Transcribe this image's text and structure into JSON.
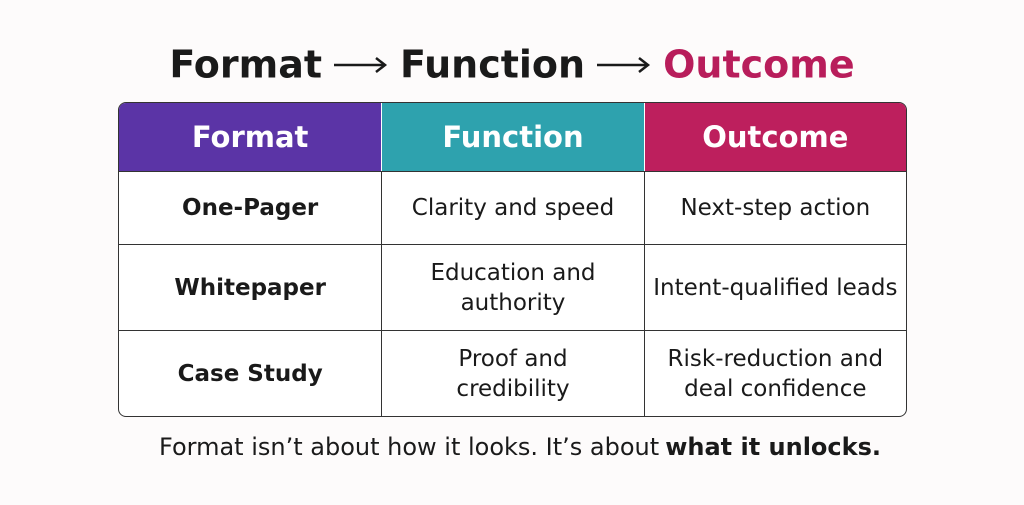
{
  "title": {
    "parts": [
      "Format",
      "Function",
      "Outcome"
    ]
  },
  "table": {
    "headers": [
      "Format",
      "Function",
      "Outcome"
    ],
    "rows": [
      [
        "One-Pager",
        "Clarity and speed",
        "Next-step action"
      ],
      [
        "Whitepaper",
        "Education and authority",
        "Intent-qualified leads"
      ],
      [
        "Case Study",
        "Proof and credibility",
        "Risk-reduction and deal confidence"
      ]
    ]
  },
  "footer": {
    "text": "Format isn’t about how it looks. It’s about",
    "emphasis": "what it unlocks."
  }
}
